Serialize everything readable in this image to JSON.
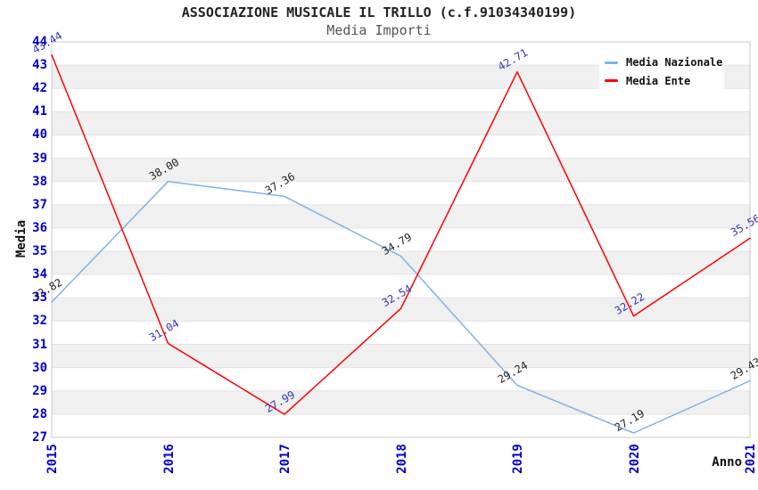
{
  "title": "ASSOCIAZIONE MUSICALE IL TRILLO (c.f.91034340199)",
  "subtitle": "Media Importi",
  "chart_data": {
    "type": "line",
    "x": [
      "2015",
      "2016",
      "2017",
      "2018",
      "2019",
      "2020",
      "2021"
    ],
    "xlabel": "Anno",
    "ylabel": "Media",
    "ylim": [
      27,
      44
    ],
    "ytick_step": 1,
    "grid": "alternating-horizontal-bands",
    "legend_position": "top-right",
    "series": [
      {
        "name": "Media Nazionale",
        "color": "#7EB2E8",
        "label_color": "#222222",
        "values": [
          32.82,
          38.0,
          37.36,
          34.79,
          29.24,
          27.19,
          29.43
        ]
      },
      {
        "name": "Media Ente",
        "color": "#FF0000",
        "label_color": "#3333BB",
        "values": [
          43.44,
          31.04,
          27.99,
          32.54,
          42.71,
          32.22,
          35.56
        ]
      }
    ]
  },
  "style": {
    "tick_color": "#0000CC",
    "band_color": "#F0F0F0",
    "grid_color": "#E3E3E3",
    "border_color": "#C8C8C8"
  }
}
